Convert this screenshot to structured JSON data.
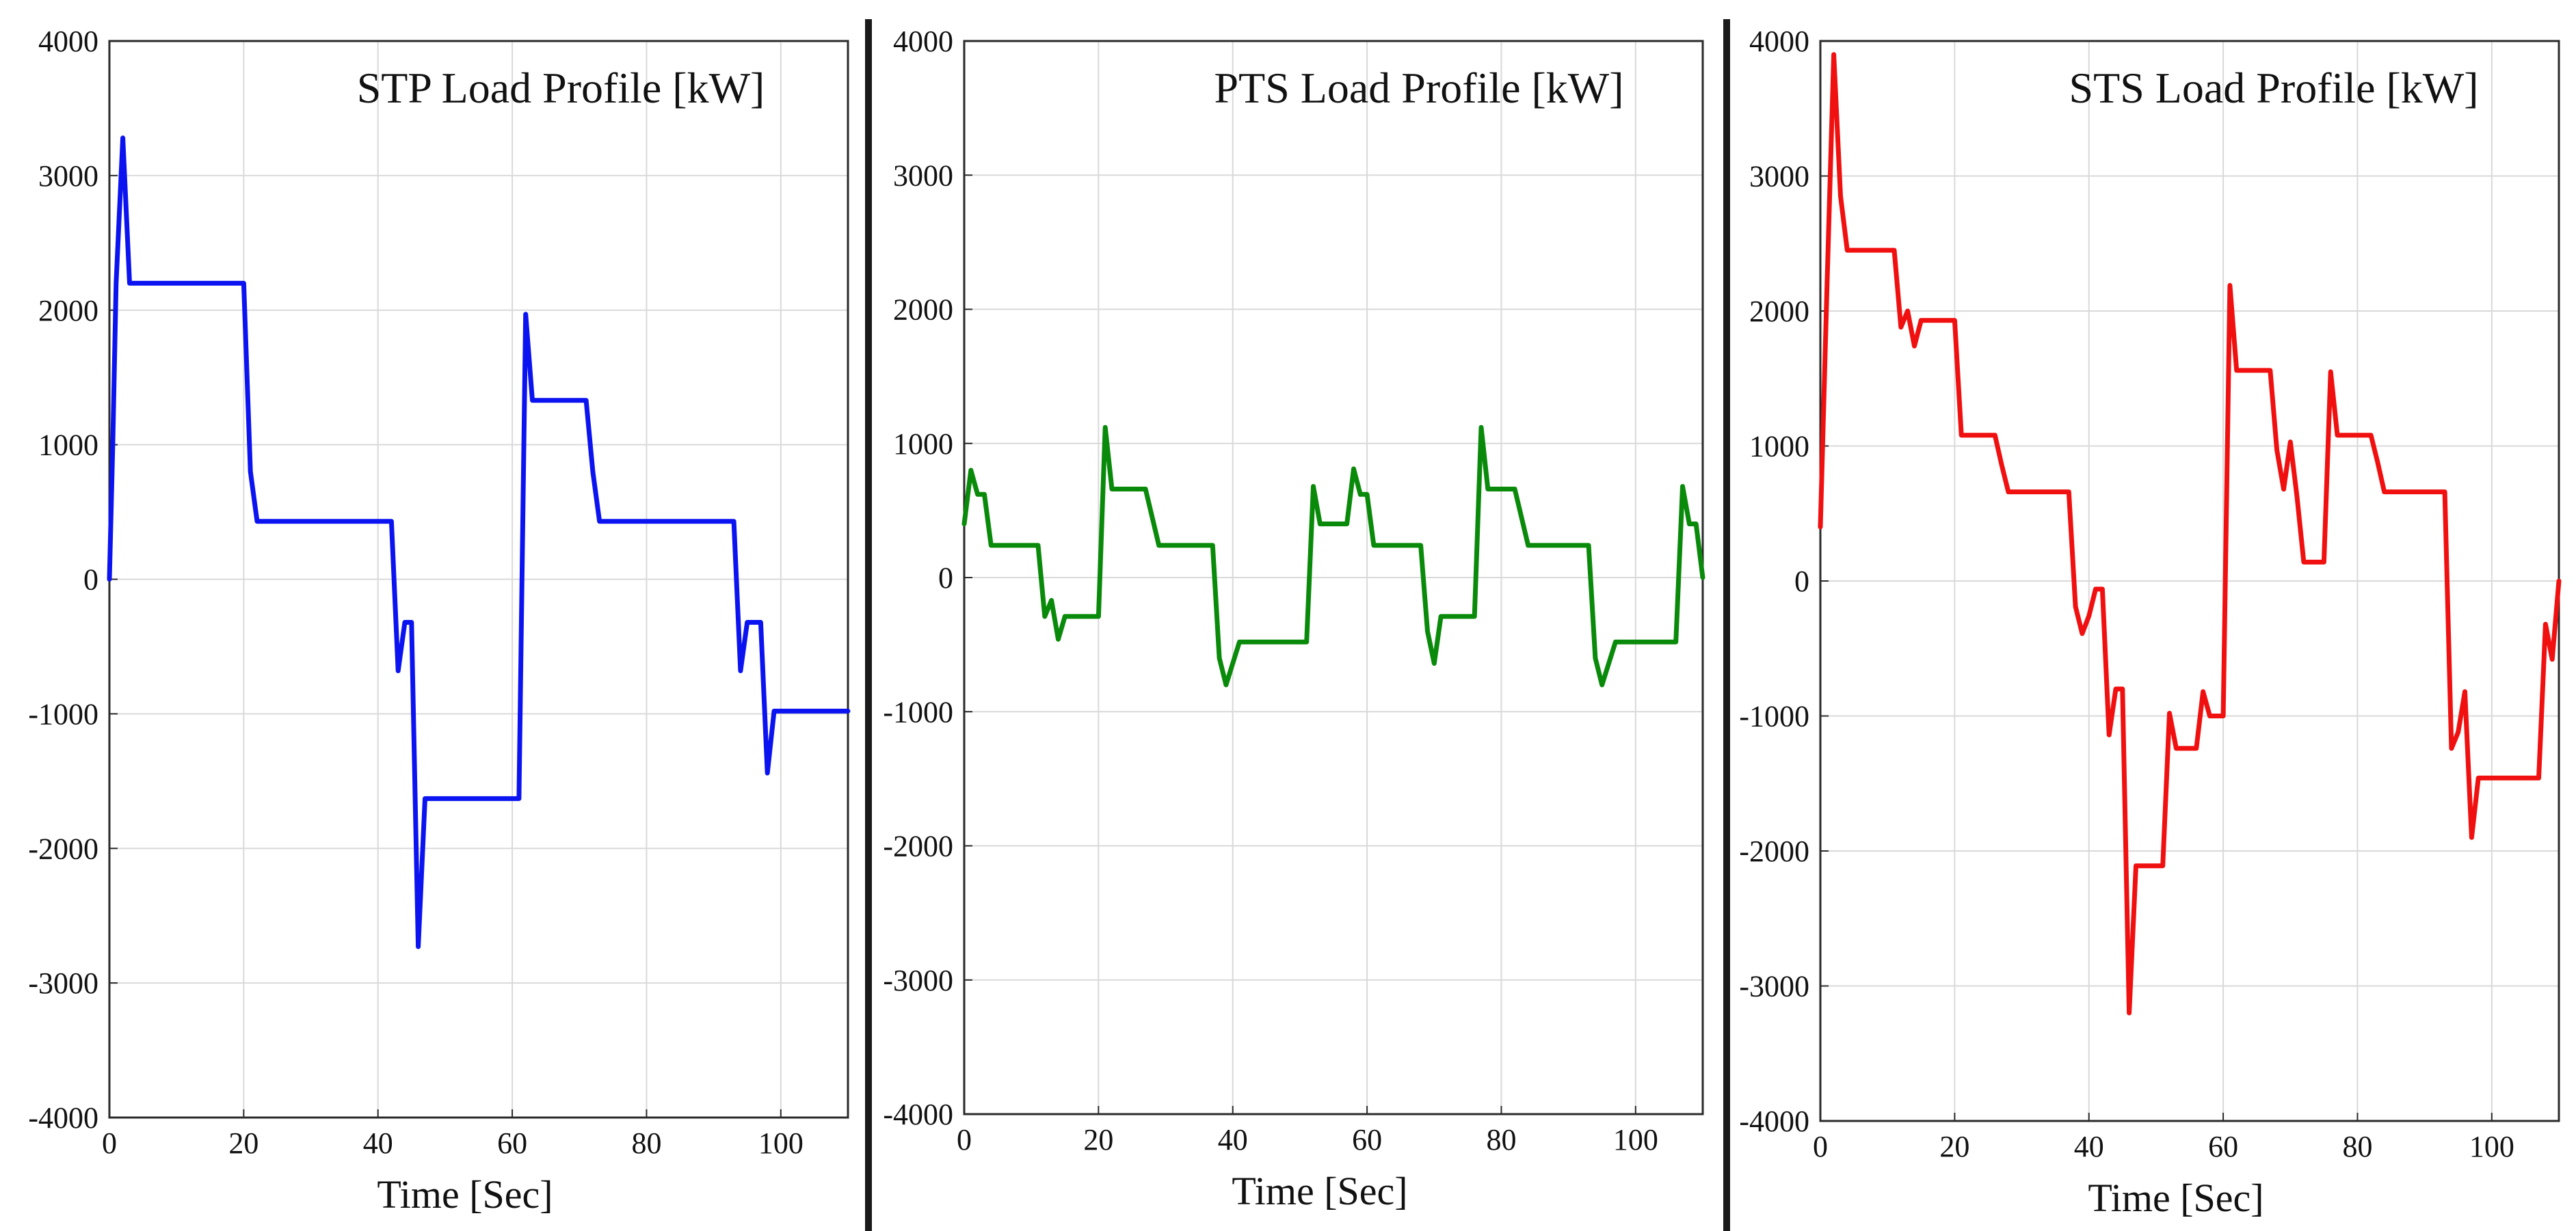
{
  "chart_data": [
    {
      "type": "line",
      "title": "STP Load Profile [kW]",
      "xlabel": "Time [Sec]",
      "ylabel": "",
      "xlim": [
        0,
        110
      ],
      "ylim": [
        -4000,
        4000
      ],
      "xticks": [
        0,
        20,
        40,
        60,
        80,
        100
      ],
      "yticks": [
        -4000,
        -3000,
        -2000,
        -1000,
        0,
        1000,
        2000,
        3000,
        4000
      ],
      "grid": true,
      "color": "#0b14f0",
      "series": [
        {
          "name": "STP Load Profile",
          "x": [
            0,
            0.5,
            1,
            2,
            3,
            20,
            21,
            22,
            42,
            43,
            44,
            45,
            46,
            47,
            61,
            62,
            63,
            70,
            71,
            72,
            73,
            93,
            94,
            95,
            97,
            98,
            99,
            110
          ],
          "y": [
            0,
            1000,
            2200,
            3280,
            2200,
            2200,
            800,
            430,
            430,
            -680,
            -320,
            -320,
            -2730,
            -1630,
            -1630,
            1970,
            1330,
            1330,
            1330,
            800,
            430,
            430,
            -680,
            -320,
            -320,
            -1440,
            -980,
            -980
          ]
        }
      ]
    },
    {
      "type": "line",
      "title": "PTS Load Profile [kW]",
      "xlabel": "Time [Sec]",
      "ylabel": "",
      "xlim": [
        0,
        110
      ],
      "ylim": [
        -4000,
        4000
      ],
      "xticks": [
        0,
        20,
        40,
        60,
        80,
        100
      ],
      "yticks": [
        -4000,
        -3000,
        -2000,
        -1000,
        0,
        1000,
        2000,
        3000,
        4000
      ],
      "grid": true,
      "color": "#0a8a0a",
      "series": [
        {
          "name": "PTS Load Profile",
          "x": [
            0,
            1,
            2,
            3,
            4,
            11,
            12,
            13,
            14,
            15,
            20,
            21,
            22,
            27,
            29,
            37,
            38,
            39,
            41,
            51,
            52,
            53,
            57,
            58,
            59,
            60,
            61,
            68,
            69,
            70,
            71,
            76,
            77,
            78,
            82,
            84,
            93,
            94,
            95,
            97,
            106,
            107,
            108,
            109,
            110
          ],
          "y": [
            400,
            800,
            620,
            620,
            240,
            240,
            -290,
            -170,
            -460,
            -290,
            -290,
            1120,
            660,
            660,
            240,
            240,
            -600,
            -800,
            -480,
            -480,
            680,
            400,
            400,
            810,
            620,
            620,
            240,
            240,
            -400,
            -640,
            -290,
            -290,
            1120,
            660,
            660,
            240,
            240,
            -600,
            -800,
            -480,
            -480,
            680,
            400,
            400,
            0
          ]
        }
      ]
    },
    {
      "type": "line",
      "title": "STS Load Profile [kW]",
      "xlabel": "Time [Sec]",
      "ylabel": "",
      "xlim": [
        0,
        110
      ],
      "ylim": [
        -4000,
        4000
      ],
      "xticks": [
        0,
        20,
        40,
        60,
        80,
        100
      ],
      "yticks": [
        -4000,
        -3000,
        -2000,
        -1000,
        0,
        1000,
        2000,
        3000,
        4000
      ],
      "grid": true,
      "color": "#f01010",
      "series": [
        {
          "name": "STS Load Profile",
          "x": [
            0,
            1,
            2,
            3,
            4,
            11,
            12,
            13,
            14,
            15,
            20,
            21,
            26,
            27,
            28,
            37,
            38,
            39,
            40,
            41,
            42,
            43,
            44,
            45,
            46,
            47,
            50,
            51,
            52,
            53,
            54,
            56,
            57,
            58,
            60,
            61,
            62,
            63,
            67,
            68,
            69,
            70,
            71,
            72,
            73,
            75,
            76,
            77,
            82,
            83,
            84,
            93,
            94,
            95,
            96,
            97,
            98,
            99,
            107,
            108,
            109,
            110
          ],
          "y": [
            400,
            2200,
            3900,
            2850,
            2450,
            2450,
            1880,
            2000,
            1740,
            1930,
            1930,
            1080,
            1080,
            860,
            660,
            660,
            -190,
            -390,
            -260,
            -60,
            -60,
            -1140,
            -800,
            -800,
            -3200,
            -2110,
            -2110,
            -2110,
            -980,
            -1240,
            -1240,
            -1240,
            -820,
            -1000,
            -1000,
            2190,
            1560,
            1560,
            1560,
            970,
            680,
            1030,
            620,
            140,
            140,
            140,
            1550,
            1080,
            1080,
            880,
            660,
            660,
            -1240,
            -1120,
            -820,
            -1900,
            -1460,
            -1460,
            -1460,
            -320,
            -580,
            0
          ]
        }
      ]
    }
  ]
}
